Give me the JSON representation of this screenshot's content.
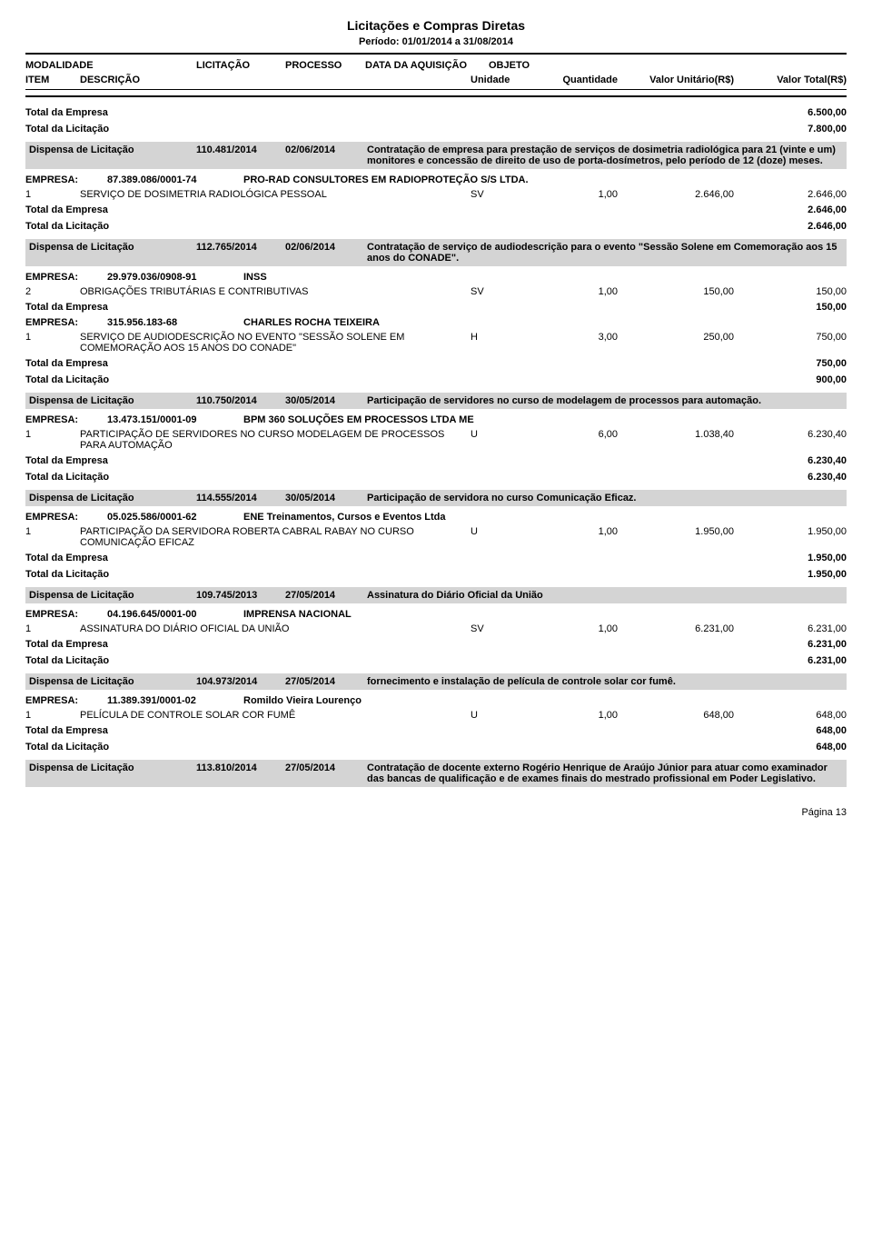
{
  "page": {
    "title": "Licitações e Compras Diretas",
    "period": "Período: 01/01/2014  a 31/08/2014",
    "footer": "Página 13"
  },
  "headers": {
    "modalidade": "MODALIDADE",
    "licitacao": "LICITAÇÃO",
    "processo": "PROCESSO",
    "data": "DATA DA AQUISIÇÃO",
    "objeto": "OBJETO",
    "item": "ITEM",
    "descricao": "DESCRIÇÃO",
    "unidade": "Unidade",
    "quantidade": "Quantidade",
    "valor_unit": "Valor Unitário(R$)",
    "valor_total": "Valor Total(R$)"
  },
  "labels": {
    "total_empresa": "Total da Empresa",
    "total_licitacao": "Total da Licitação",
    "empresa": "EMPRESA:"
  },
  "pre_totals": {
    "total_empresa": "6.500,00",
    "total_licitacao": "7.800,00"
  },
  "blocks": [
    {
      "band": {
        "mod": "Dispensa de Licitação",
        "lic": "110.481/2014",
        "dat": "02/06/2014",
        "obj": "Contratação de empresa para prestação de serviços de dosimetria radiológica para 21 (vinte e um) monitores e concessão de direito de uso de porta-dosímetros, pelo período de 12 (doze) meses."
      },
      "empresas": [
        {
          "cnpj": "87.389.086/0001-74",
          "nome": "PRO-RAD CONSULTORES EM RADIOPROTEÇÃO S/S LTDA.",
          "items": [
            {
              "n": "1",
              "desc": "SERVIÇO DE DOSIMETRIA RADIOLÓGICA PESSOAL",
              "un": "SV",
              "q": "1,00",
              "vu": "2.646,00",
              "vt": "2.646,00"
            }
          ],
          "total": "2.646,00"
        }
      ],
      "total_lic": "2.646,00"
    },
    {
      "band": {
        "mod": "Dispensa de Licitação",
        "lic": "112.765/2014",
        "dat": "02/06/2014",
        "obj": "Contratação de serviço de audiodescrição para o evento \"Sessão Solene em Comemoração aos 15 anos do CONADE\"."
      },
      "empresas": [
        {
          "cnpj": "29.979.036/0908-91",
          "nome": "INSS",
          "items": [
            {
              "n": "2",
              "desc": "OBRIGAÇÕES TRIBUTÁRIAS E CONTRIBUTIVAS",
              "un": "SV",
              "q": "1,00",
              "vu": "150,00",
              "vt": "150,00"
            }
          ],
          "total": "150,00"
        },
        {
          "cnpj": "315.956.183-68",
          "nome": "CHARLES ROCHA TEIXEIRA",
          "items": [
            {
              "n": "1",
              "desc": "SERVIÇO DE AUDIODESCRIÇÃO NO EVENTO \"SESSÃO SOLENE EM COMEMORAÇÃO AOS 15 ANOS DO CONADE\"",
              "un": "H",
              "q": "3,00",
              "vu": "250,00",
              "vt": "750,00"
            }
          ],
          "total": "750,00"
        }
      ],
      "total_lic": "900,00"
    },
    {
      "band": {
        "mod": "Dispensa de Licitação",
        "lic": "110.750/2014",
        "dat": "30/05/2014",
        "obj": "Participação de servidores no curso de modelagem de processos para automação."
      },
      "empresas": [
        {
          "cnpj": "13.473.151/0001-09",
          "nome": "BPM 360 SOLUÇÕES EM PROCESSOS LTDA ME",
          "items": [
            {
              "n": "1",
              "desc": "PARTICIPAÇÃO DE SERVIDORES NO CURSO MODELAGEM DE PROCESSOS PARA AUTOMAÇÃO",
              "un": "U",
              "q": "6,00",
              "vu": "1.038,40",
              "vt": "6.230,40"
            }
          ],
          "total": "6.230,40"
        }
      ],
      "total_lic": "6.230,40"
    },
    {
      "band": {
        "mod": "Dispensa de Licitação",
        "lic": "114.555/2014",
        "dat": "30/05/2014",
        "obj": "Participação de servidora no curso Comunicação Eficaz."
      },
      "empresas": [
        {
          "cnpj": "05.025.586/0001-62",
          "nome": "ENE Treinamentos, Cursos e Eventos Ltda",
          "items": [
            {
              "n": "1",
              "desc": "PARTICIPAÇÃO DA SERVIDORA ROBERTA CABRAL RABAY NO CURSO COMUNICAÇÃO EFICAZ",
              "un": "U",
              "q": "1,00",
              "vu": "1.950,00",
              "vt": "1.950,00"
            }
          ],
          "total": "1.950,00"
        }
      ],
      "total_lic": "1.950,00"
    },
    {
      "band": {
        "mod": "Dispensa de Licitação",
        "lic": "109.745/2013",
        "dat": "27/05/2014",
        "obj": "Assinatura do Diário Oficial da União"
      },
      "empresas": [
        {
          "cnpj": "04.196.645/0001-00",
          "nome": "IMPRENSA NACIONAL",
          "items": [
            {
              "n": "1",
              "desc": "ASSINATURA DO DIÁRIO OFICIAL DA UNIÃO",
              "un": "SV",
              "q": "1,00",
              "vu": "6.231,00",
              "vt": "6.231,00"
            }
          ],
          "total": "6.231,00"
        }
      ],
      "total_lic": "6.231,00"
    },
    {
      "band": {
        "mod": "Dispensa de Licitação",
        "lic": "104.973/2014",
        "dat": "27/05/2014",
        "obj": "fornecimento e instalação de película de controle solar cor fumê."
      },
      "empresas": [
        {
          "cnpj": "11.389.391/0001-02",
          "nome": "Romildo Vieira Lourenço",
          "items": [
            {
              "n": "1",
              "desc": "PELÍCULA DE CONTROLE SOLAR COR FUMÊ",
              "un": "U",
              "q": "1,00",
              "vu": "648,00",
              "vt": "648,00"
            }
          ],
          "total": "648,00"
        }
      ],
      "total_lic": "648,00"
    },
    {
      "band": {
        "mod": "Dispensa de Licitação",
        "lic": "113.810/2014",
        "dat": "27/05/2014",
        "obj": "Contratação de docente externo Rogério Henrique de Araújo Júnior para atuar como examinador das bancas de qualificação e de exames finais do mestrado profissional em Poder Legislativo."
      },
      "empresas": [],
      "total_lic": null
    }
  ]
}
